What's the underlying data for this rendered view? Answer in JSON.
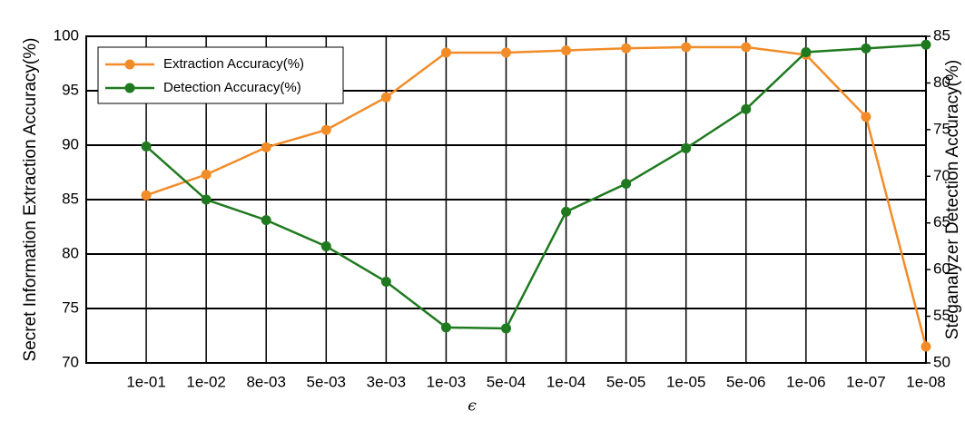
{
  "chart_data": {
    "type": "line",
    "x_label": "ϵ",
    "y_label": "Secret Information Extraction Accuracy(%)",
    "y2_label": "Steganalyzer Detection Accuracy(%)",
    "categories": [
      "1e-01",
      "1e-02",
      "8e-03",
      "5e-03",
      "3e-03",
      "1e-03",
      "5e-04",
      "1e-04",
      "5e-05",
      "1e-05",
      "5e-06",
      "1e-06",
      "1e-07",
      "1e-08"
    ],
    "series": [
      {
        "name": "Extraction Accuracy(%)",
        "color": "#f28c28",
        "values": [
          85.4,
          87.3,
          89.8,
          91.4,
          94.4,
          98.5,
          98.5,
          98.7,
          98.9,
          99.0,
          99.0,
          98.3,
          92.6,
          71.5
        ]
      },
      {
        "name": "Detection Accuracy(%)",
        "color": "#1f7a1f",
        "axis": "y2",
        "values": [
          73.2,
          67.5,
          65.3,
          62.5,
          58.7,
          53.8,
          53.7,
          66.2,
          69.2,
          73.0,
          77.2,
          83.3,
          83.7,
          84.1
        ]
      }
    ],
    "ylim": [
      70,
      100
    ],
    "yticks": [
      70,
      75,
      80,
      85,
      90,
      95,
      100
    ],
    "y2lim": [
      50,
      85
    ],
    "y2ticks": [
      50,
      55,
      60,
      65,
      70,
      75,
      80,
      85
    ],
    "grid": true,
    "legend": "upper-left"
  }
}
